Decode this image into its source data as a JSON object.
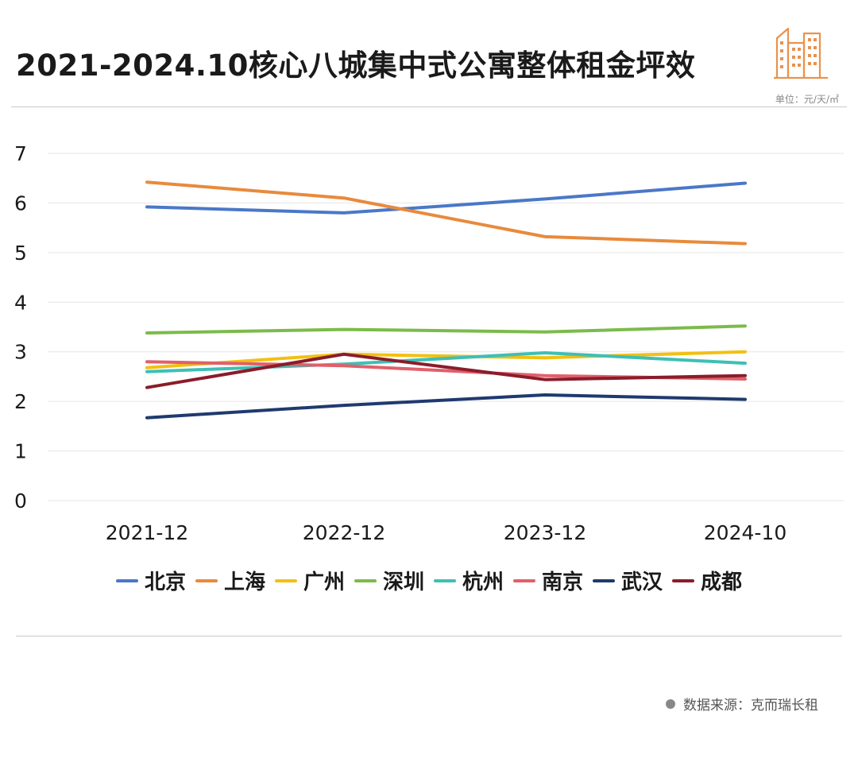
{
  "title": "2021-2024.10核心八城集中式公寓整体租金坪效",
  "unit_label": "单位：元/天/㎡",
  "source": {
    "text": "数据来源：克而瑞长租"
  },
  "colors": {
    "background": "#ffffff",
    "grid": "#e6e6e6",
    "logo": "#e8924f"
  },
  "logo": {
    "icon": "city-buildings-icon"
  },
  "chart_data": {
    "type": "line",
    "title": "2021-2024.10核心八城集中式公寓整体租金坪效",
    "xlabel": "",
    "ylabel": "",
    "categories": [
      "2021-12",
      "2022-12",
      "2023-12",
      "2024-10"
    ],
    "ylim": [
      0,
      7
    ],
    "yticks": [
      "0",
      "1",
      "2",
      "3",
      "4",
      "5",
      "6",
      "7"
    ],
    "grid": true,
    "legend_position": "bottom",
    "series": [
      {
        "name": "北京",
        "color": "#4a78c8",
        "values": [
          5.92,
          5.8,
          6.08,
          6.4
        ]
      },
      {
        "name": "上海",
        "color": "#e88a3c",
        "values": [
          6.42,
          6.1,
          5.32,
          5.18
        ]
      },
      {
        "name": "广州",
        "color": "#f2c012",
        "values": [
          2.68,
          2.95,
          2.88,
          3.0
        ]
      },
      {
        "name": "深圳",
        "color": "#7cbb4a",
        "values": [
          3.38,
          3.45,
          3.4,
          3.52
        ]
      },
      {
        "name": "杭州",
        "color": "#3fbfb4",
        "values": [
          2.6,
          2.75,
          2.98,
          2.77
        ]
      },
      {
        "name": "南京",
        "color": "#e0606a",
        "values": [
          2.8,
          2.72,
          2.52,
          2.45
        ]
      },
      {
        "name": "武汉",
        "color": "#1f3a6e",
        "values": [
          1.67,
          1.92,
          2.13,
          2.04
        ]
      },
      {
        "name": "成都",
        "color": "#8b1c2b",
        "values": [
          2.28,
          2.95,
          2.44,
          2.52
        ]
      }
    ]
  }
}
